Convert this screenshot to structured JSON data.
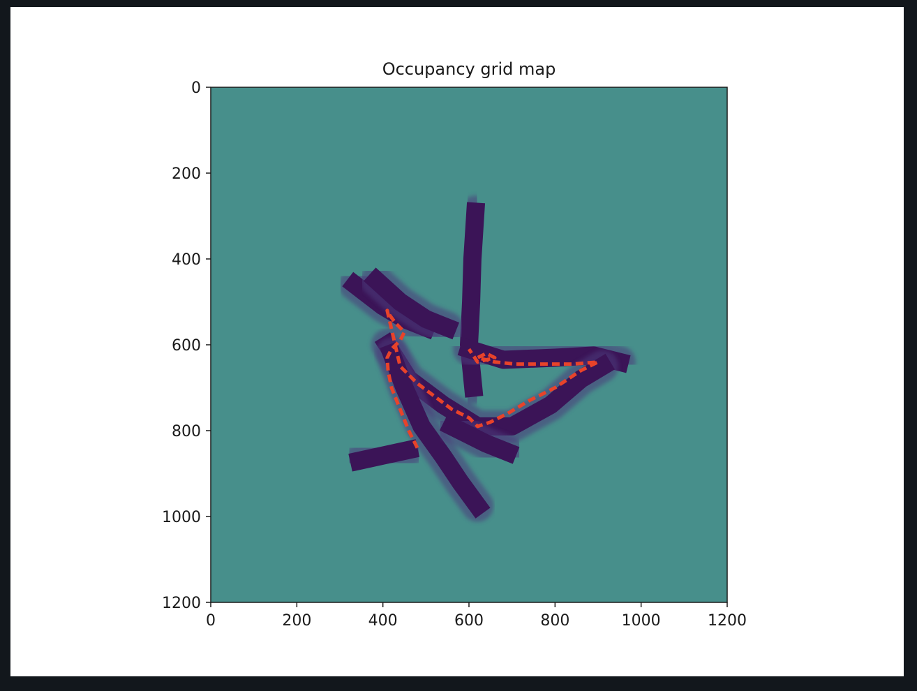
{
  "chart_data": {
    "type": "heatmap",
    "title": "Occupancy grid map",
    "xlabel": "",
    "ylabel": "",
    "xlim": [
      0,
      1200
    ],
    "ylim": [
      1200,
      0
    ],
    "y_inverted": true,
    "x_ticks": [
      0,
      200,
      400,
      600,
      800,
      1000,
      1200
    ],
    "y_ticks": [
      0,
      200,
      400,
      600,
      800,
      1000,
      1200
    ],
    "background_value": "unknown",
    "colors": {
      "unknown": "#478f8b",
      "free": "#3b1457",
      "free_edge": "#4b3a7c",
      "path": "#e8432a",
      "axes": "#1a1a1a"
    },
    "free_corridors": [
      {
        "name": "north-arm",
        "points": [
          [
            615,
            290
          ],
          [
            608,
            400
          ],
          [
            605,
            500
          ],
          [
            600,
            600
          ],
          [
            610,
            700
          ]
        ]
      },
      {
        "name": "east-arm",
        "points": [
          [
            600,
            610
          ],
          [
            680,
            635
          ],
          [
            800,
            630
          ],
          [
            890,
            625
          ],
          [
            950,
            640
          ]
        ]
      },
      {
        "name": "north-west-arm",
        "points": [
          [
            335,
            460
          ],
          [
            400,
            510
          ],
          [
            450,
            540
          ],
          [
            500,
            560
          ]
        ]
      },
      {
        "name": "north-west-arm-2",
        "points": [
          [
            385,
            450
          ],
          [
            440,
            500
          ],
          [
            500,
            540
          ],
          [
            550,
            560
          ]
        ]
      },
      {
        "name": "diagonal-arm",
        "points": [
          [
            410,
            600
          ],
          [
            460,
            680
          ],
          [
            540,
            740
          ],
          [
            620,
            790
          ],
          [
            700,
            790
          ],
          [
            790,
            740
          ],
          [
            860,
            680
          ],
          [
            910,
            650
          ]
        ]
      },
      {
        "name": "south-arm",
        "points": [
          [
            420,
            620
          ],
          [
            450,
            700
          ],
          [
            490,
            790
          ],
          [
            540,
            860
          ],
          [
            580,
            920
          ],
          [
            620,
            975
          ]
        ]
      },
      {
        "name": "south-east-stub",
        "points": [
          [
            560,
            790
          ],
          [
            600,
            810
          ],
          [
            640,
            830
          ],
          [
            690,
            850
          ]
        ]
      },
      {
        "name": "west-spur",
        "points": [
          [
            345,
            870
          ],
          [
            400,
            858
          ],
          [
            460,
            845
          ]
        ]
      }
    ],
    "series": [
      {
        "type": "line",
        "style": "dashed",
        "x": [
          480,
          460,
          440,
          420,
          412,
          410,
          420,
          440,
          450,
          430,
          415,
          410,
          440,
          480,
          520,
          560,
          600,
          620,
          650,
          690,
          740,
          800,
          860,
          900,
          840,
          800,
          760,
          710,
          660,
          620,
          640,
          660,
          620,
          600
        ],
        "y": [
          840,
          800,
          750,
          700,
          660,
          630,
          610,
          590,
          570,
          550,
          530,
          520,
          650,
          690,
          720,
          750,
          770,
          790,
          780,
          760,
          730,
          700,
          660,
          640,
          645,
          645,
          645,
          645,
          640,
          630,
          620,
          630,
          640,
          610
        ]
      }
    ]
  }
}
